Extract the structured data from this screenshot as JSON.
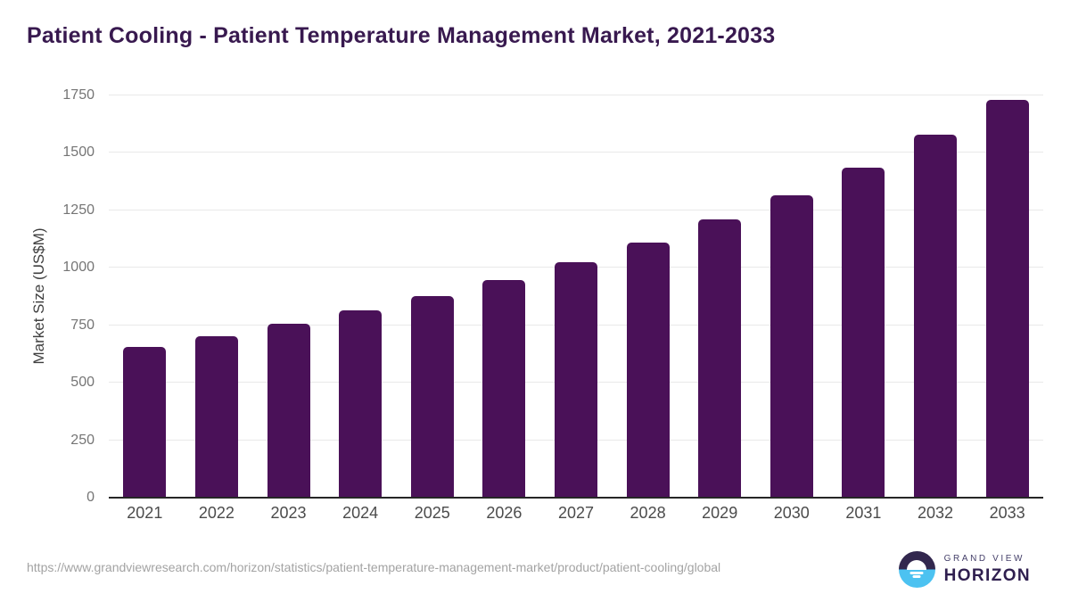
{
  "title": "Patient Cooling - Patient Temperature Management Market, 2021-2033",
  "chart_data": {
    "type": "bar",
    "categories": [
      "2021",
      "2022",
      "2023",
      "2024",
      "2025",
      "2026",
      "2027",
      "2028",
      "2029",
      "2030",
      "2031",
      "2032",
      "2033"
    ],
    "values": [
      655,
      704,
      755,
      813,
      877,
      947,
      1025,
      1111,
      1209,
      1316,
      1436,
      1578,
      1731
    ],
    "title": "Patient Cooling - Patient Temperature Management Market, 2021-2033",
    "xlabel": "",
    "ylabel": "Market Size (US$M)",
    "ylim": [
      0,
      1750
    ],
    "yticks": [
      0,
      250,
      500,
      750,
      1000,
      1250,
      1500,
      1750
    ],
    "grid": true,
    "legend": false
  },
  "footer": {
    "source_url": "https://www.grandviewresearch.com/horizon/statistics/patient-temperature-management-market/product/patient-cooling/global",
    "logo": {
      "line1": "GRAND VIEW",
      "line2": "HORIZON"
    }
  },
  "colors": {
    "bar": "#4a1158",
    "titleText": "#38194f",
    "axisTitle": "#3f3f3f",
    "axisLine": "#262626",
    "gridline": "#e9e9e9",
    "ytickText": "#757575",
    "xtickText": "#4b4b4b",
    "urlText": "#a3a3a3",
    "logoPurple": "#32274e",
    "logoBlue": "#4cc2f1",
    "logoTextLight": "#45406a",
    "logoTextDark": "#2f1f4f"
  }
}
